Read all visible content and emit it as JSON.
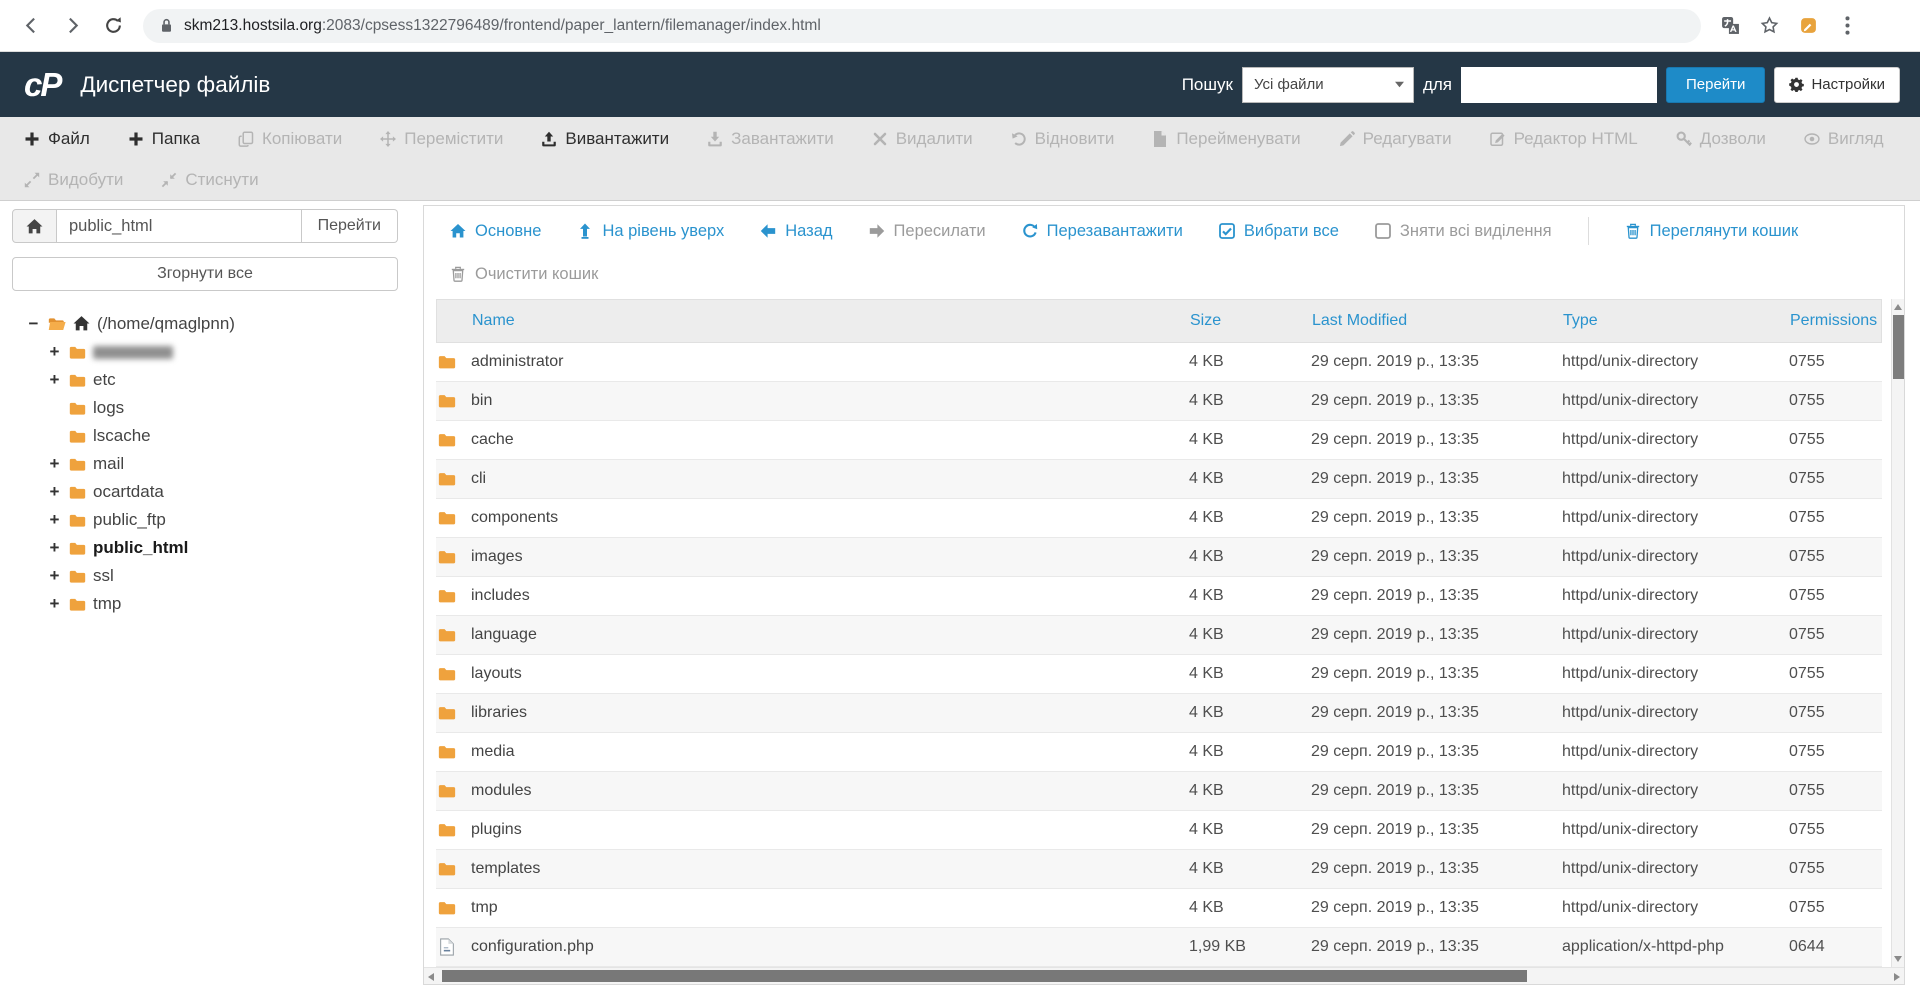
{
  "browser": {
    "url_host": "skm213.hostsila.org",
    "url_path": ":2083/cpsess1322796489/frontend/paper_lantern/filemanager/index.html"
  },
  "header": {
    "logo": "cP",
    "title": "Диспетчер файлів",
    "search_label": "Пошук",
    "search_scope": "Усі файли",
    "for_label": "для",
    "search_value": "",
    "go_button": "Перейти",
    "settings_button": "Настройки"
  },
  "toolbar": {
    "row1": [
      {
        "label": "Файл",
        "icon": "plus",
        "enabled": true
      },
      {
        "label": "Папка",
        "icon": "plus",
        "enabled": true
      },
      {
        "label": "Копіювати",
        "icon": "copy",
        "enabled": false
      },
      {
        "label": "Перемістити",
        "icon": "move",
        "enabled": false
      },
      {
        "label": "Вивантажити",
        "icon": "upload",
        "enabled": true
      },
      {
        "label": "Завантажити",
        "icon": "download",
        "enabled": false
      },
      {
        "label": "Видалити",
        "icon": "x",
        "enabled": false
      },
      {
        "label": "Відновити",
        "icon": "undo",
        "enabled": false
      },
      {
        "label": "Перейменувати",
        "icon": "file",
        "enabled": false
      },
      {
        "label": "Редагувати",
        "icon": "pencil",
        "enabled": false
      },
      {
        "label": "Редактор HTML",
        "icon": "html",
        "enabled": false
      },
      {
        "label": "Дозволи",
        "icon": "key",
        "enabled": false
      },
      {
        "label": "Вигляд",
        "icon": "eye",
        "enabled": false
      }
    ],
    "row2": [
      {
        "label": "Видобути",
        "icon": "extract",
        "enabled": false
      },
      {
        "label": "Стиснути",
        "icon": "compress",
        "enabled": false
      }
    ]
  },
  "sidebar": {
    "path_value": "public_html",
    "go_button": "Перейти",
    "collapse_all_button": "Згорнути все",
    "tree_root_label": "(/home/qmaglpnn)",
    "tree_root_expand": "−",
    "tree": [
      {
        "label": "",
        "expand": "+",
        "blurred": true
      },
      {
        "label": "etc",
        "expand": "+"
      },
      {
        "label": "logs",
        "expand": ""
      },
      {
        "label": "lscache",
        "expand": ""
      },
      {
        "label": "mail",
        "expand": "+"
      },
      {
        "label": "ocartdata",
        "expand": "+"
      },
      {
        "label": "public_ftp",
        "expand": "+"
      },
      {
        "label": "public_html",
        "expand": "+",
        "bold": true
      },
      {
        "label": "ssl",
        "expand": "+"
      },
      {
        "label": "tmp",
        "expand": "+"
      }
    ]
  },
  "content_toolbar": {
    "main": [
      {
        "label": "Основне",
        "icon": "home"
      },
      {
        "label": "На рівень уверх",
        "icon": "uplevel"
      },
      {
        "label": "Назад",
        "icon": "aleft"
      },
      {
        "label": "Пересилати",
        "icon": "aright",
        "disabled": true
      },
      {
        "label": "Перезавантажити",
        "icon": "refresh"
      },
      {
        "label": "Вибрати все",
        "icon": "checksq"
      },
      {
        "label": "Зняти всі виділення",
        "icon": "emptysq",
        "disabled": true
      }
    ],
    "trash": [
      {
        "label": "Переглянути кошик",
        "icon": "trash"
      }
    ],
    "row2": [
      {
        "label": "Очистити кошик",
        "icon": "trash",
        "disabled": true
      }
    ]
  },
  "table": {
    "columns": [
      "Name",
      "Size",
      "Last Modified",
      "Type",
      "Permissions"
    ],
    "rows": [
      {
        "name": "administrator",
        "icon": "folder",
        "size": "4 KB",
        "modified": "29 серп. 2019 р., 13:35",
        "type": "httpd/unix-directory",
        "permissions": "0755"
      },
      {
        "name": "bin",
        "icon": "folder",
        "size": "4 KB",
        "modified": "29 серп. 2019 р., 13:35",
        "type": "httpd/unix-directory",
        "permissions": "0755"
      },
      {
        "name": "cache",
        "icon": "folder",
        "size": "4 KB",
        "modified": "29 серп. 2019 р., 13:35",
        "type": "httpd/unix-directory",
        "permissions": "0755"
      },
      {
        "name": "cli",
        "icon": "folder",
        "size": "4 KB",
        "modified": "29 серп. 2019 р., 13:35",
        "type": "httpd/unix-directory",
        "permissions": "0755"
      },
      {
        "name": "components",
        "icon": "folder",
        "size": "4 KB",
        "modified": "29 серп. 2019 р., 13:35",
        "type": "httpd/unix-directory",
        "permissions": "0755"
      },
      {
        "name": "images",
        "icon": "folder",
        "size": "4 KB",
        "modified": "29 серп. 2019 р., 13:35",
        "type": "httpd/unix-directory",
        "permissions": "0755"
      },
      {
        "name": "includes",
        "icon": "folder",
        "size": "4 KB",
        "modified": "29 серп. 2019 р., 13:35",
        "type": "httpd/unix-directory",
        "permissions": "0755"
      },
      {
        "name": "language",
        "icon": "folder",
        "size": "4 KB",
        "modified": "29 серп. 2019 р., 13:35",
        "type": "httpd/unix-directory",
        "permissions": "0755"
      },
      {
        "name": "layouts",
        "icon": "folder",
        "size": "4 KB",
        "modified": "29 серп. 2019 р., 13:35",
        "type": "httpd/unix-directory",
        "permissions": "0755"
      },
      {
        "name": "libraries",
        "icon": "folder",
        "size": "4 KB",
        "modified": "29 серп. 2019 р., 13:35",
        "type": "httpd/unix-directory",
        "permissions": "0755"
      },
      {
        "name": "media",
        "icon": "folder",
        "size": "4 KB",
        "modified": "29 серп. 2019 р., 13:35",
        "type": "httpd/unix-directory",
        "permissions": "0755"
      },
      {
        "name": "modules",
        "icon": "folder",
        "size": "4 KB",
        "modified": "29 серп. 2019 р., 13:35",
        "type": "httpd/unix-directory",
        "permissions": "0755"
      },
      {
        "name": "plugins",
        "icon": "folder",
        "size": "4 KB",
        "modified": "29 серп. 2019 р., 13:35",
        "type": "httpd/unix-directory",
        "permissions": "0755"
      },
      {
        "name": "templates",
        "icon": "folder",
        "size": "4 KB",
        "modified": "29 серп. 2019 р., 13:35",
        "type": "httpd/unix-directory",
        "permissions": "0755"
      },
      {
        "name": "tmp",
        "icon": "folder",
        "size": "4 KB",
        "modified": "29 серп. 2019 р., 13:35",
        "type": "httpd/unix-directory",
        "permissions": "0755"
      },
      {
        "name": "configuration.php",
        "icon": "page",
        "size": "1,99 KB",
        "modified": "29 серп. 2019 р., 13:35",
        "type": "application/x-httpd-php",
        "permissions": "0644"
      }
    ]
  }
}
